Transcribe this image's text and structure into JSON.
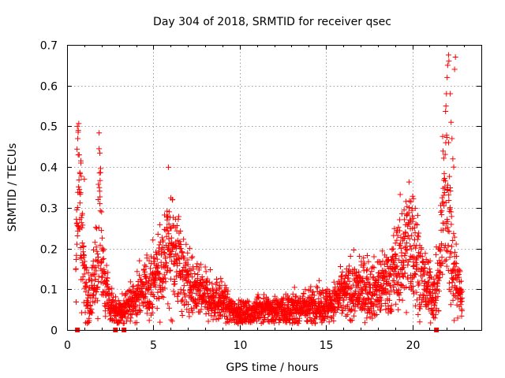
{
  "chart_data": {
    "type": "scatter",
    "title": "Day 304 of 2018, SRMTID for receiver qsec",
    "xlabel": "GPS time / hours",
    "ylabel": "SRMTID / TECUs",
    "xlim": [
      0,
      24
    ],
    "ylim": [
      0,
      0.7
    ],
    "xticks": [
      0,
      5,
      10,
      15,
      20
    ],
    "yticks": [
      0,
      0.1,
      0.2,
      0.3,
      0.4,
      0.5,
      0.6,
      0.7
    ],
    "xtick_labels": [
      "0",
      "5",
      "10",
      "15",
      "20"
    ],
    "ytick_labels": [
      "0",
      "0.1",
      "0.2",
      "0.3",
      "0.4",
      "0.5",
      "0.6",
      "0.7"
    ],
    "grid": true,
    "legend": "none",
    "series": [
      {
        "name": "SRMTID",
        "marker": "plus",
        "color": "#ff0000",
        "profile": {
          "x": [
            0.5,
            0.6,
            0.75,
            1.0,
            1.3,
            1.7,
            1.9,
            2.1,
            2.5,
            2.9,
            3.3,
            3.7,
            4.2,
            4.6,
            5.0,
            5.5,
            5.9,
            6.3,
            6.8,
            7.5,
            8.2,
            9.0,
            9.5,
            10.0,
            10.5,
            11.0,
            12.0,
            13.0,
            14.0,
            15.0,
            15.5,
            16.0,
            17.0,
            18.0,
            18.8,
            19.3,
            19.8,
            20.2,
            20.6,
            21.0,
            21.3,
            21.6,
            21.85,
            22.1,
            22.3,
            22.6,
            22.9
          ],
          "y": [
            0.12,
            0.35,
            0.3,
            0.12,
            0.07,
            0.15,
            0.28,
            0.12,
            0.06,
            0.04,
            0.05,
            0.07,
            0.09,
            0.1,
            0.12,
            0.16,
            0.21,
            0.19,
            0.13,
            0.09,
            0.08,
            0.07,
            0.05,
            0.04,
            0.04,
            0.05,
            0.05,
            0.05,
            0.06,
            0.06,
            0.07,
            0.09,
            0.1,
            0.1,
            0.13,
            0.17,
            0.22,
            0.2,
            0.12,
            0.1,
            0.08,
            0.15,
            0.35,
            0.3,
            0.18,
            0.12,
            0.07
          ]
        },
        "extremes": {
          "x": [
            0.6,
            0.65,
            0.62,
            0.7,
            0.8,
            1.0,
            1.8,
            1.9,
            2.0,
            5.8,
            5.9,
            6.0,
            6.6,
            19.6,
            19.9,
            20.0,
            21.95,
            21.98,
            22.02,
            22.05,
            22.1,
            22.12,
            22.2,
            22.25,
            22.3,
            22.35,
            22.4,
            22.45,
            22.5
          ],
          "y": [
            0.5,
            0.49,
            0.47,
            0.43,
            0.41,
            0.37,
            0.32,
            0.31,
            0.29,
            0.27,
            0.26,
            0.25,
            0.2,
            0.24,
            0.27,
            0.28,
            0.55,
            0.58,
            0.62,
            0.65,
            0.675,
            0.66,
            0.58,
            0.51,
            0.47,
            0.42,
            0.4,
            0.64,
            0.67
          ]
        },
        "points_per_hour": 120,
        "scatter_spread": 0.35
      },
      {
        "name": "data gaps",
        "marker": "square",
        "color": "#ff0000",
        "x": [
          0.6,
          2.8,
          3.3,
          21.4
        ],
        "y": [
          0,
          0,
          0,
          0
        ]
      }
    ]
  }
}
